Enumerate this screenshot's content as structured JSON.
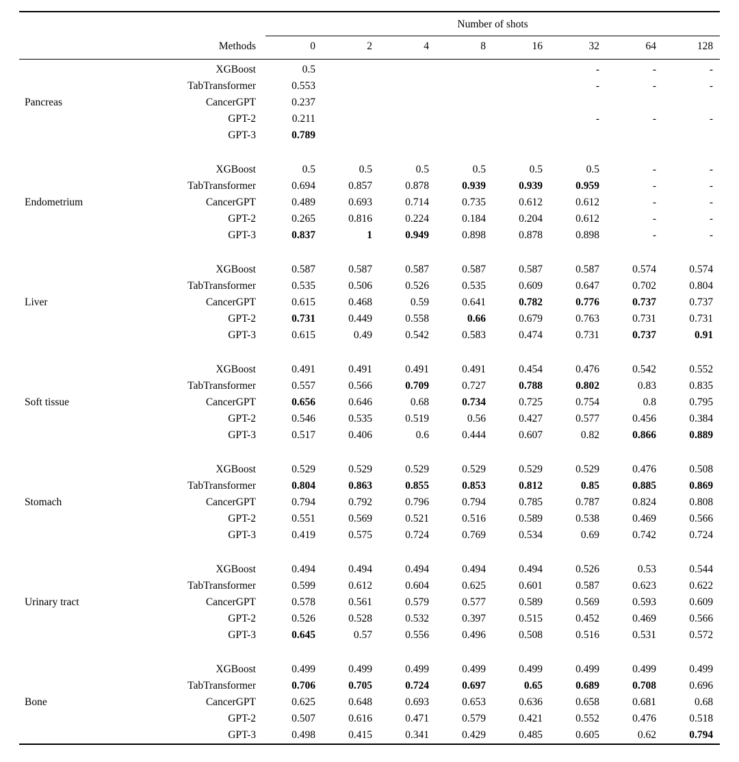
{
  "table": {
    "spanner": "Number of shots",
    "methods_header": "Methods",
    "shot_headers": [
      "0",
      "2",
      "4",
      "8",
      "16",
      "32",
      "64",
      "128"
    ],
    "groups": [
      {
        "tissue": "Pancreas",
        "rows": [
          {
            "method": "XGBoost",
            "values": [
              "0.5",
              "",
              "",
              "",
              "",
              "-",
              "-",
              "-"
            ],
            "bold": []
          },
          {
            "method": "TabTransformer",
            "values": [
              "0.553",
              "",
              "",
              "",
              "",
              "-",
              "-",
              "-"
            ],
            "bold": []
          },
          {
            "method": "CancerGPT",
            "values": [
              "0.237",
              "",
              "",
              "",
              "",
              "",
              "",
              ""
            ],
            "bold": []
          },
          {
            "method": "GPT-2",
            "values": [
              "0.211",
              "",
              "",
              "",
              "",
              "-",
              "-",
              "-"
            ],
            "bold": []
          },
          {
            "method": "GPT-3",
            "values": [
              "0.789",
              "",
              "",
              "",
              "",
              "",
              "",
              ""
            ],
            "bold": [
              0
            ]
          }
        ]
      },
      {
        "tissue": "Endometrium",
        "rows": [
          {
            "method": "XGBoost",
            "values": [
              "0.5",
              "0.5",
              "0.5",
              "0.5",
              "0.5",
              "0.5",
              "-",
              "-"
            ],
            "bold": []
          },
          {
            "method": "TabTransformer",
            "values": [
              "0.694",
              "0.857",
              "0.878",
              "0.939",
              "0.939",
              "0.959",
              "-",
              "-"
            ],
            "bold": [
              3,
              4,
              5
            ]
          },
          {
            "method": "CancerGPT",
            "values": [
              "0.489",
              "0.693",
              "0.714",
              "0.735",
              "0.612",
              "0.612",
              "-",
              "-"
            ],
            "bold": []
          },
          {
            "method": "GPT-2",
            "values": [
              "0.265",
              "0.816",
              "0.224",
              "0.184",
              "0.204",
              "0.612",
              "-",
              "-"
            ],
            "bold": []
          },
          {
            "method": "GPT-3",
            "values": [
              "0.837",
              "1",
              "0.949",
              "0.898",
              "0.878",
              "0.898",
              "-",
              "-"
            ],
            "bold": [
              0,
              1,
              2
            ]
          }
        ]
      },
      {
        "tissue": "Liver",
        "rows": [
          {
            "method": "XGBoost",
            "values": [
              "0.587",
              "0.587",
              "0.587",
              "0.587",
              "0.587",
              "0.587",
              "0.574",
              "0.574"
            ],
            "bold": []
          },
          {
            "method": "TabTransformer",
            "values": [
              "0.535",
              "0.506",
              "0.526",
              "0.535",
              "0.609",
              "0.647",
              "0.702",
              "0.804"
            ],
            "bold": []
          },
          {
            "method": "CancerGPT",
            "values": [
              "0.615",
              "0.468",
              "0.59",
              "0.641",
              "0.782",
              "0.776",
              "0.737",
              "0.737"
            ],
            "bold": [
              4,
              5,
              6
            ]
          },
          {
            "method": "GPT-2",
            "values": [
              "0.731",
              "0.449",
              "0.558",
              "0.66",
              "0.679",
              "0.763",
              "0.731",
              "0.731"
            ],
            "bold": [
              0,
              3
            ]
          },
          {
            "method": "GPT-3",
            "values": [
              "0.615",
              "0.49",
              "0.542",
              "0.583",
              "0.474",
              "0.731",
              "0.737",
              "0.91"
            ],
            "bold": [
              6,
              7
            ]
          }
        ]
      },
      {
        "tissue": "Soft tissue",
        "rows": [
          {
            "method": "XGBoost",
            "values": [
              "0.491",
              "0.491",
              "0.491",
              "0.491",
              "0.454",
              "0.476",
              "0.542",
              "0.552"
            ],
            "bold": []
          },
          {
            "method": "TabTransformer",
            "values": [
              "0.557",
              "0.566",
              "0.709",
              "0.727",
              "0.788",
              "0.802",
              "0.83",
              "0.835"
            ],
            "bold": [
              2,
              4,
              5
            ]
          },
          {
            "method": "CancerGPT",
            "values": [
              "0.656",
              "0.646",
              "0.68",
              "0.734",
              "0.725",
              "0.754",
              "0.8",
              "0.795"
            ],
            "bold": [
              0,
              3
            ]
          },
          {
            "method": "GPT-2",
            "values": [
              "0.546",
              "0.535",
              "0.519",
              "0.56",
              "0.427",
              "0.577",
              "0.456",
              "0.384"
            ],
            "bold": []
          },
          {
            "method": "GPT-3",
            "values": [
              "0.517",
              "0.406",
              "0.6",
              "0.444",
              "0.607",
              "0.82",
              "0.866",
              "0.889"
            ],
            "bold": [
              6,
              7
            ]
          }
        ]
      },
      {
        "tissue": "Stomach",
        "rows": [
          {
            "method": "XGBoost",
            "values": [
              "0.529",
              "0.529",
              "0.529",
              "0.529",
              "0.529",
              "0.529",
              "0.476",
              "0.508"
            ],
            "bold": []
          },
          {
            "method": "TabTransformer",
            "values": [
              "0.804",
              "0.863",
              "0.855",
              "0.853",
              "0.812",
              "0.85",
              "0.885",
              "0.869"
            ],
            "bold": [
              0,
              1,
              2,
              3,
              4,
              5,
              6,
              7
            ]
          },
          {
            "method": "CancerGPT",
            "values": [
              "0.794",
              "0.792",
              "0.796",
              "0.794",
              "0.785",
              "0.787",
              "0.824",
              "0.808"
            ],
            "bold": []
          },
          {
            "method": "GPT-2",
            "values": [
              "0.551",
              "0.569",
              "0.521",
              "0.516",
              "0.589",
              "0.538",
              "0.469",
              "0.566"
            ],
            "bold": []
          },
          {
            "method": "GPT-3",
            "values": [
              "0.419",
              "0.575",
              "0.724",
              "0.769",
              "0.534",
              "0.69",
              "0.742",
              "0.724"
            ],
            "bold": []
          }
        ]
      },
      {
        "tissue": "Urinary tract",
        "rows": [
          {
            "method": "XGBoost",
            "values": [
              "0.494",
              "0.494",
              "0.494",
              "0.494",
              "0.494",
              "0.526",
              "0.53",
              "0.544"
            ],
            "bold": []
          },
          {
            "method": "TabTransformer",
            "values": [
              "0.599",
              "0.612",
              "0.604",
              "0.625",
              "0.601",
              "0.587",
              "0.623",
              "0.622"
            ],
            "bold": []
          },
          {
            "method": "CancerGPT",
            "values": [
              "0.578",
              "0.561",
              "0.579",
              "0.577",
              "0.589",
              "0.569",
              "0.593",
              "0.609"
            ],
            "bold": []
          },
          {
            "method": "GPT-2",
            "values": [
              "0.526",
              "0.528",
              "0.532",
              "0.397",
              "0.515",
              "0.452",
              "0.469",
              "0.566"
            ],
            "bold": []
          },
          {
            "method": "GPT-3",
            "values": [
              "0.645",
              "0.57",
              "0.556",
              "0.496",
              "0.508",
              "0.516",
              "0.531",
              "0.572"
            ],
            "bold": [
              0
            ]
          }
        ]
      },
      {
        "tissue": "Bone",
        "rows": [
          {
            "method": "XGBoost",
            "values": [
              "0.499",
              "0.499",
              "0.499",
              "0.499",
              "0.499",
              "0.499",
              "0.499",
              "0.499"
            ],
            "bold": []
          },
          {
            "method": "TabTransformer",
            "values": [
              "0.706",
              "0.705",
              "0.724",
              "0.697",
              "0.65",
              "0.689",
              "0.708",
              "0.696"
            ],
            "bold": [
              0,
              1,
              2,
              3,
              4,
              5,
              6
            ]
          },
          {
            "method": "CancerGPT",
            "values": [
              "0.625",
              "0.648",
              "0.693",
              "0.653",
              "0.636",
              "0.658",
              "0.681",
              "0.68"
            ],
            "bold": []
          },
          {
            "method": "GPT-2",
            "values": [
              "0.507",
              "0.616",
              "0.471",
              "0.579",
              "0.421",
              "0.552",
              "0.476",
              "0.518"
            ],
            "bold": []
          },
          {
            "method": "GPT-3",
            "values": [
              "0.498",
              "0.415",
              "0.341",
              "0.429",
              "0.485",
              "0.605",
              "0.62",
              "0.794"
            ],
            "bold": [
              7
            ]
          }
        ]
      }
    ]
  }
}
